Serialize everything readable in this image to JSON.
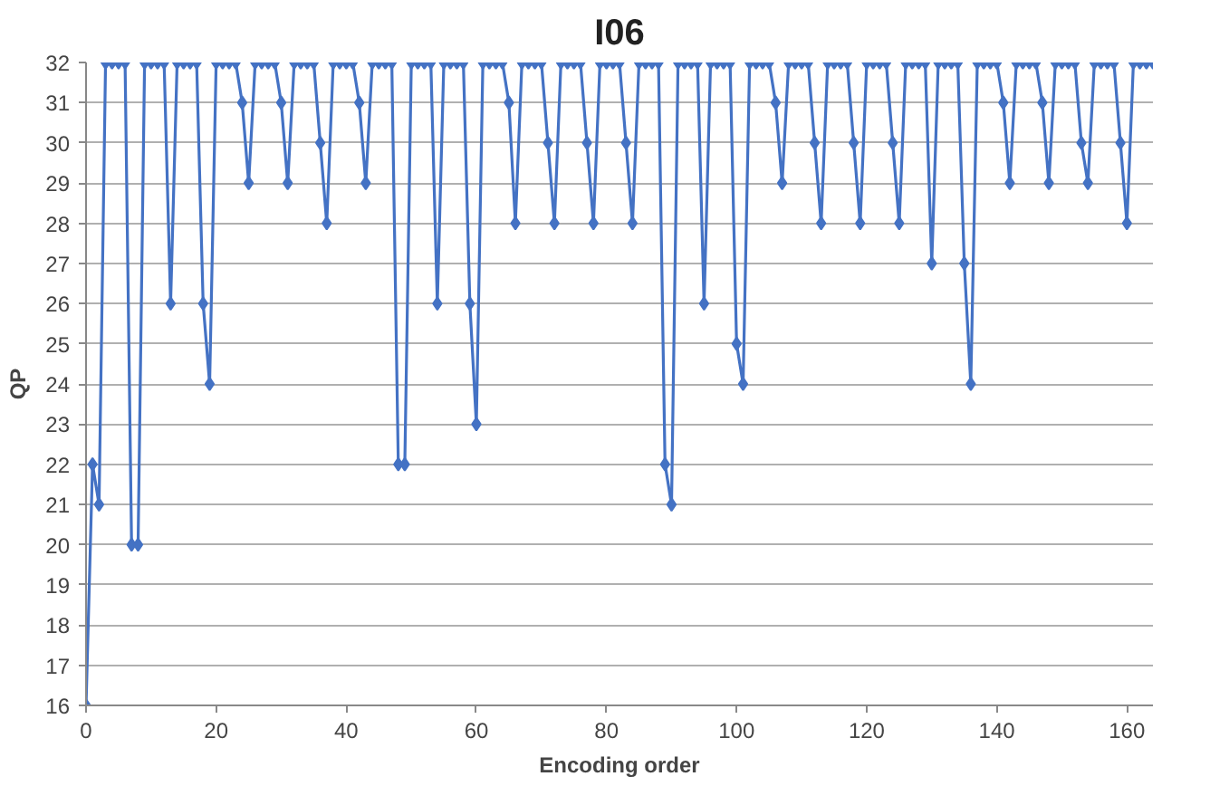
{
  "chart_data": {
    "type": "line",
    "title": "I06",
    "xlabel": "Encoding order",
    "ylabel": "QP",
    "x": [
      0,
      1,
      2,
      3,
      4,
      5,
      6,
      7,
      8,
      9,
      10,
      11,
      12,
      13,
      14,
      15,
      16,
      17,
      18,
      19,
      20,
      21,
      22,
      23,
      24,
      25,
      26,
      27,
      28,
      29,
      30,
      31,
      32,
      33,
      34,
      35,
      36,
      37,
      38,
      39,
      40,
      41,
      42,
      43,
      44,
      45,
      46,
      47,
      48,
      49,
      50,
      51,
      52,
      53,
      54,
      55,
      56,
      57,
      58,
      59,
      60,
      61,
      62,
      63,
      64,
      65,
      66,
      67,
      68,
      69,
      70,
      71,
      72,
      73,
      74,
      75,
      76,
      77,
      78,
      79,
      80,
      81,
      82,
      83,
      84,
      85,
      86,
      87,
      88,
      89,
      90,
      91,
      92,
      93,
      94,
      95,
      96,
      97,
      98,
      99,
      100,
      101,
      102,
      103,
      104,
      105,
      106,
      107,
      108,
      109,
      110,
      111,
      112,
      113,
      114,
      115,
      116,
      117,
      118,
      119,
      120,
      121,
      122,
      123,
      124,
      125,
      126,
      127,
      128,
      129,
      130,
      131,
      132,
      133,
      134,
      135,
      136,
      137,
      138,
      139,
      140,
      141,
      142,
      143,
      144,
      145,
      146,
      147,
      148,
      149,
      150,
      151,
      152,
      153,
      154,
      155,
      156,
      157,
      158,
      159,
      160,
      161,
      162,
      163,
      164
    ],
    "series": [
      {
        "color": "#4472c4",
        "values": [
          16,
          22,
          21,
          32,
          32,
          32,
          32,
          20,
          20,
          32,
          32,
          32,
          32,
          26,
          32,
          32,
          32,
          32,
          26,
          24,
          32,
          32,
          32,
          32,
          31,
          29,
          32,
          32,
          32,
          32,
          31,
          29,
          32,
          32,
          32,
          32,
          30,
          28,
          32,
          32,
          32,
          32,
          31,
          29,
          32,
          32,
          32,
          32,
          22,
          22,
          32,
          32,
          32,
          32,
          26,
          32,
          32,
          32,
          32,
          26,
          23,
          32,
          32,
          32,
          32,
          31,
          28,
          32,
          32,
          32,
          32,
          30,
          28,
          32,
          32,
          32,
          32,
          30,
          28,
          32,
          32,
          32,
          32,
          30,
          28,
          32,
          32,
          32,
          32,
          22,
          21,
          32,
          32,
          32,
          32,
          26,
          32,
          32,
          32,
          32,
          25,
          24,
          32,
          32,
          32,
          32,
          31,
          29,
          32,
          32,
          32,
          32,
          30,
          28,
          32,
          32,
          32,
          32,
          30,
          28,
          32,
          32,
          32,
          32,
          30,
          28,
          32,
          32,
          32,
          32,
          27,
          32,
          32,
          32,
          32,
          27,
          24,
          32,
          32,
          32,
          32,
          31,
          29,
          32,
          32,
          32,
          32,
          31,
          29,
          32,
          32,
          32,
          32,
          30,
          29,
          32,
          32,
          32,
          32,
          30,
          28,
          32,
          32,
          32,
          32
        ]
      }
    ],
    "xlim": [
      0,
      164
    ],
    "xticks": [
      0,
      20,
      40,
      60,
      80,
      100,
      120,
      140,
      160
    ],
    "ylim": [
      16,
      32
    ],
    "yticks": [
      16,
      17,
      18,
      19,
      20,
      21,
      22,
      23,
      24,
      25,
      26,
      27,
      28,
      29,
      30,
      31,
      32
    ],
    "grid": "y",
    "marker": "diamond",
    "line_style": "solid"
  }
}
